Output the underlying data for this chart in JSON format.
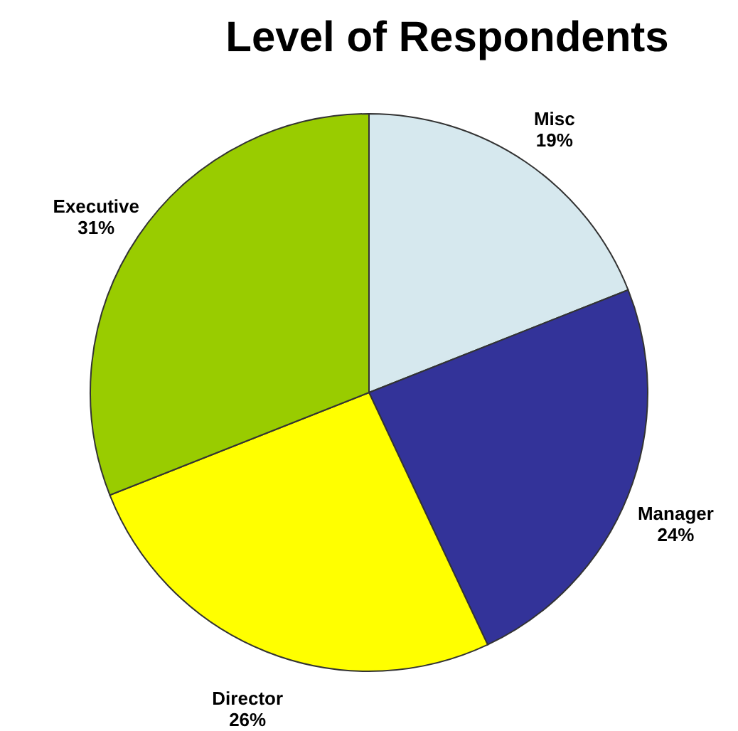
{
  "chart_data": {
    "type": "pie",
    "title": "Level of Respondents",
    "categories": [
      "Misc",
      "Manager",
      "Director",
      "Executive"
    ],
    "values": [
      19,
      24,
      26,
      31
    ],
    "value_labels": [
      "19%",
      "24%",
      "26%",
      "31%"
    ],
    "colors": [
      "#d6e8ee",
      "#333399",
      "#ffff00",
      "#99cc00"
    ]
  }
}
